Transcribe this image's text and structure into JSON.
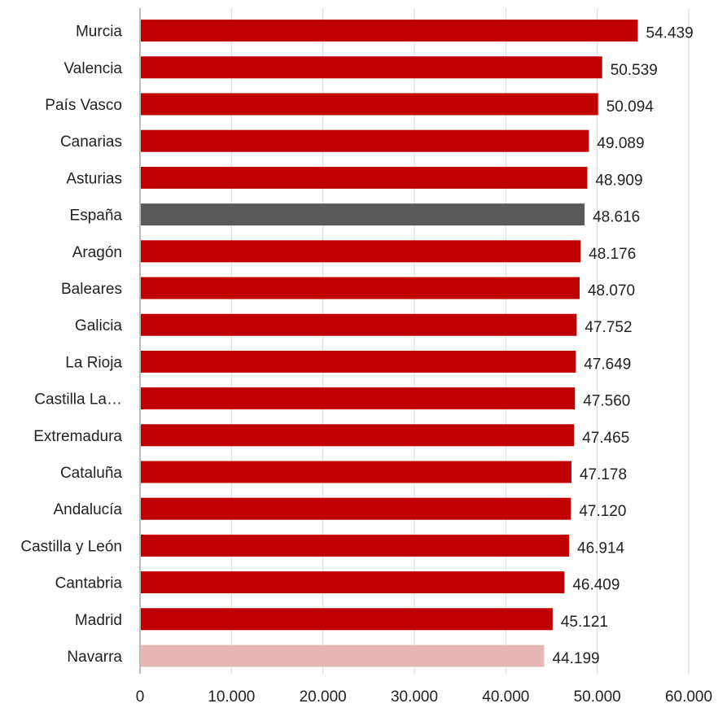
{
  "chart_data": {
    "type": "bar",
    "orientation": "horizontal",
    "categories": [
      "Murcia",
      "Valencia",
      "País Vasco",
      "Canarias",
      "Asturias",
      "España",
      "Aragón",
      "Baleares",
      "Galicia",
      "La Rioja",
      "Castilla La…",
      "Extremadura",
      "Cataluña",
      "Andalucía",
      "Castilla y León",
      "Cantabria",
      "Madrid",
      "Navarra"
    ],
    "values": [
      54439,
      50539,
      50094,
      49089,
      48909,
      48616,
      48176,
      48070,
      47752,
      47649,
      47560,
      47465,
      47178,
      47120,
      46914,
      46409,
      45121,
      44199
    ],
    "value_labels": [
      "54.439",
      "50.539",
      "50.094",
      "49.089",
      "48.909",
      "48.616",
      "48.176",
      "48.070",
      "47.752",
      "47.649",
      "47.560",
      "47.465",
      "47.178",
      "47.120",
      "46.914",
      "46.409",
      "45.121",
      "44.199"
    ],
    "bar_colors": [
      "#c00000",
      "#c00000",
      "#c00000",
      "#c00000",
      "#c00000",
      "#595959",
      "#c00000",
      "#c00000",
      "#c00000",
      "#c00000",
      "#c00000",
      "#c00000",
      "#c00000",
      "#c00000",
      "#c00000",
      "#c00000",
      "#c00000",
      "#e6b9b8"
    ],
    "x_ticks": [
      0,
      10000,
      20000,
      30000,
      40000,
      50000,
      60000
    ],
    "x_tick_labels": [
      "0",
      "10.000",
      "20.000",
      "30.000",
      "40.000",
      "50.000",
      "60.000"
    ],
    "xlim": [
      0,
      60000
    ],
    "grid": "vertical",
    "legend": "none",
    "title": "",
    "xlabel": "",
    "ylabel": ""
  },
  "colors": {
    "primary": "#c00000",
    "highlight": "#595959",
    "muted": "#e6b9b8",
    "grid": "#d9d9d9",
    "axis": "#a6a6a6"
  }
}
